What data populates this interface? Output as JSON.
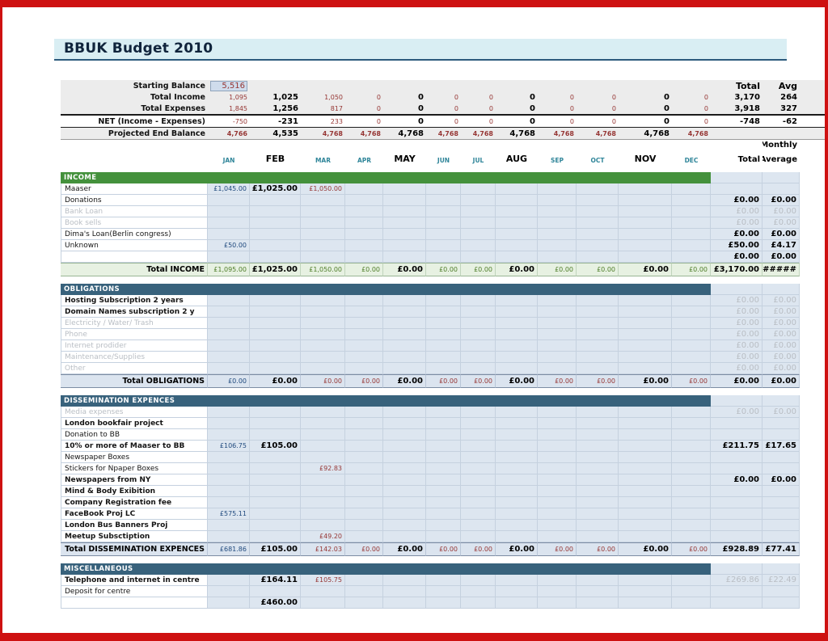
{
  "page": {
    "title": "BBUK Budget 2010"
  },
  "colors": {
    "frame_red": "#ce1111",
    "section_green": "#44913c",
    "section_slate": "#38627c",
    "grid_blue_bg": "#dde6f0",
    "muted_text": "#b9bec4",
    "small_value_red": "#963634",
    "jan_value_navy": "#1f497d",
    "month_teal": "#2f8599",
    "income_total_bg": "#e7f1e2",
    "income_total_text": "#4e7d28",
    "title_band_bg": "#d9eef3",
    "summary_band_bg": "#ececec",
    "highlight_cell_bg": "#cfdcec"
  },
  "columns": {
    "month_labels": [
      "JAN",
      "FEB",
      "MAR",
      "APR",
      "MAY",
      "JUN",
      "JUL",
      "AUG",
      "SEP",
      "OCT",
      "NOV",
      "DEC"
    ],
    "total_label": "Total",
    "avg_label": "Avg",
    "monthly_label": "Monthly",
    "total_header": "Total",
    "average_header": "Average"
  },
  "summary": {
    "starting_balance_label": "Starting Balance",
    "starting_balance_value": "5,516",
    "rows": [
      {
        "label": "Total Income",
        "values": [
          "1,095",
          "1,025",
          "1,050",
          "0",
          "0",
          "0",
          "0",
          "0",
          "0",
          "0",
          "0",
          "0"
        ],
        "total": "3,170",
        "avg": "264"
      },
      {
        "label": "Total Expenses",
        "values": [
          "1,845",
          "1,256",
          "817",
          "0",
          "0",
          "0",
          "0",
          "0",
          "0",
          "0",
          "0",
          "0"
        ],
        "total": "3,918",
        "avg": "327"
      },
      {
        "label": "NET (Income - Expenses)",
        "values": [
          "-750",
          "-231",
          "233",
          "0",
          "0",
          "0",
          "0",
          "0",
          "0",
          "0",
          "0",
          "0"
        ],
        "total": "-748",
        "avg": "-62"
      },
      {
        "label": "Projected End Balance",
        "values": [
          "4,766",
          "4,535",
          "4,768",
          "4,768",
          "4,768",
          "4,768",
          "4,768",
          "4,768",
          "4,768",
          "4,768",
          "4,768",
          "4,768"
        ],
        "total": "",
        "avg": ""
      }
    ]
  },
  "sections": [
    {
      "name": "INCOME",
      "style": "green",
      "rows": [
        {
          "label": "Maaser",
          "values": [
            "£1,045.00",
            "£1,025.00",
            "£1,050.00",
            "",
            "",
            "",
            "",
            "",
            "",
            "",
            "",
            ""
          ]
        },
        {
          "label": "Donations",
          "total": "£0.00",
          "avg": "£0.00"
        },
        {
          "label": "Bank Loan",
          "muted": true,
          "muted_totals": true,
          "total": "£0.00",
          "avg": "£0.00"
        },
        {
          "label": "Book sells",
          "muted": true,
          "muted_totals": true,
          "total": "£0.00",
          "avg": "£0.00"
        },
        {
          "label": "Dima's Loan(Berlin congress)",
          "total": "£0.00",
          "avg": "£0.00"
        },
        {
          "label": "Unknown",
          "values": [
            "£50.00",
            "",
            "",
            "",
            "",
            "",
            "",
            "",
            "",
            "",
            "",
            ""
          ],
          "total": "£50.00",
          "avg": "£4.17"
        },
        {
          "label": "",
          "total": "£0.00",
          "avg": "£0.00"
        }
      ],
      "total_row": {
        "label": "Total INCOME",
        "values": [
          "£1,095.00",
          "£1,025.00",
          "£1,050.00",
          "£0.00",
          "£0.00",
          "£0.00",
          "£0.00",
          "£0.00",
          "£0.00",
          "£0.00",
          "£0.00",
          "£0.00"
        ],
        "total": "£3,170.00",
        "avg": "######"
      }
    },
    {
      "name": "OBLIGATIONS",
      "style": "slate",
      "rows": [
        {
          "label": "Hosting Subscription 2 years",
          "bold": true,
          "muted_totals": true,
          "total": "£0.00",
          "avg": "£0.00"
        },
        {
          "label": "Domain Names subscription 2 y",
          "bold": true,
          "muted_totals": true,
          "total": "£0.00",
          "avg": "£0.00"
        },
        {
          "label": "Electricity / Water/ Trash",
          "muted": true,
          "muted_totals": true,
          "total": "£0.00",
          "avg": "£0.00"
        },
        {
          "label": "Phone",
          "muted": true,
          "muted_totals": true,
          "total": "£0.00",
          "avg": "£0.00"
        },
        {
          "label": "Internet prodider",
          "muted": true,
          "muted_totals": true,
          "total": "£0.00",
          "avg": "£0.00"
        },
        {
          "label": "Maintenance/Supplies",
          "muted": true,
          "muted_totals": true,
          "total": "£0.00",
          "avg": "£0.00"
        },
        {
          "label": "Other",
          "muted": true,
          "muted_totals": true,
          "total": "£0.00",
          "avg": "£0.00"
        }
      ],
      "total_row": {
        "label": "Total OBLIGATIONS",
        "values": [
          "£0.00",
          "£0.00",
          "£0.00",
          "£0.00",
          "£0.00",
          "£0.00",
          "£0.00",
          "£0.00",
          "£0.00",
          "£0.00",
          "£0.00",
          "£0.00"
        ],
        "total": "£0.00",
        "avg": "£0.00"
      }
    },
    {
      "name": "DISSEMINATION EXPENCES",
      "style": "slate",
      "rows": [
        {
          "label": "Media expenses",
          "muted": true,
          "muted_totals": true,
          "total": "£0.00",
          "avg": "£0.00"
        },
        {
          "label": "London bookfair project",
          "bold": true
        },
        {
          "label": "Donation to BB"
        },
        {
          "label": "10% or more of Maaser to BB",
          "bold": true,
          "values": [
            "£106.75",
            "£105.00",
            "",
            "",
            "",
            "",
            "",
            "",
            "",
            "",
            "",
            ""
          ],
          "total": "£211.75",
          "avg": "£17.65"
        },
        {
          "label": "Newspaper Boxes"
        },
        {
          "label": "Stickers for Npaper Boxes",
          "values": [
            "",
            "",
            "£92.83",
            "",
            "",
            "",
            "",
            "",
            "",
            "",
            "",
            ""
          ]
        },
        {
          "label": "Newspapers from NY",
          "bold": true,
          "total": "£0.00",
          "avg": "£0.00"
        },
        {
          "label": "Mind & Body Exibition",
          "bold": true
        },
        {
          "label": "Company Registration fee",
          "bold": true
        },
        {
          "label": "FaceBook Proj LC",
          "bold": true,
          "values": [
            "£575.11",
            "",
            "",
            "",
            "",
            "",
            "",
            "",
            "",
            "",
            "",
            ""
          ]
        },
        {
          "label": "London Bus Banners Proj",
          "bold": true
        },
        {
          "label": "Meetup Subsctiption",
          "bold": true,
          "values": [
            "",
            "",
            "£49.20",
            "",
            "",
            "",
            "",
            "",
            "",
            "",
            "",
            ""
          ]
        }
      ],
      "total_row": {
        "label": "Total DISSEMINATION EXPENCES",
        "values": [
          "£681.86",
          "£105.00",
          "£142.03",
          "£0.00",
          "£0.00",
          "£0.00",
          "£0.00",
          "£0.00",
          "£0.00",
          "£0.00",
          "£0.00",
          "£0.00"
        ],
        "total": "£928.89",
        "avg": "£77.41"
      }
    },
    {
      "name": "MISCELLANEOUS",
      "style": "slate",
      "rows": [
        {
          "label": "Telephone and internet in centre",
          "bold": true,
          "values": [
            "",
            "£164.11",
            "£105.75",
            "",
            "",
            "",
            "",
            "",
            "",
            "",
            "",
            ""
          ],
          "muted_totals": true,
          "total": "£269.86",
          "avg": "£22.49"
        },
        {
          "label": "Deposit for centre"
        },
        {
          "label": "",
          "values": [
            "",
            "£460.00",
            "",
            "",
            "",
            "",
            "",
            "",
            "",
            "",
            "",
            ""
          ]
        }
      ]
    }
  ]
}
